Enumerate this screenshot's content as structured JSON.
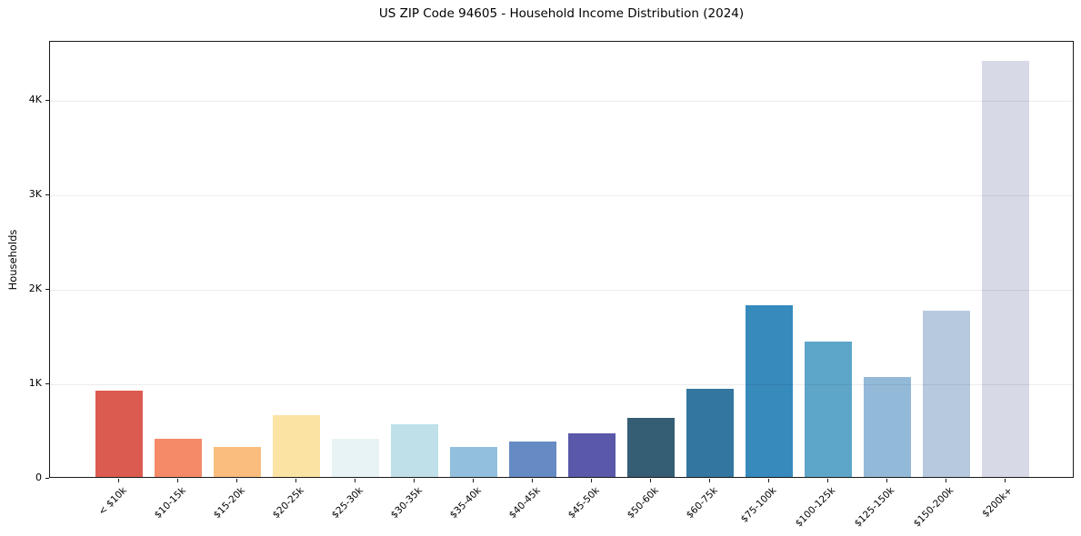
{
  "chart_data": {
    "type": "bar",
    "title": "US ZIP Code 94605 - Household Income Distribution (2024)",
    "xlabel": "",
    "ylabel": "Households",
    "categories": [
      "< $10k",
      "$10-15k",
      "$15-20k",
      "$20-25k",
      "$25-30k",
      "$30-35k",
      "$35-40k",
      "$40-45k",
      "$45-50k",
      "$50-60k",
      "$60-75k",
      "$75-100k",
      "$100-125k",
      "$125-150k",
      "$150-200k",
      "$200k+"
    ],
    "values": [
      915,
      404,
      320,
      654,
      404,
      558,
      317,
      375,
      465,
      625,
      933,
      1817,
      1433,
      1061,
      1760,
      4404
    ],
    "bar_colors": [
      "#dc5b51",
      "#f58a69",
      "#fabd7e",
      "#fbe3a3",
      "#e7f3f4",
      "#bfe0e9",
      "#92bfdd",
      "#668bc4",
      "#5a58a8",
      "#355d73",
      "#33769f",
      "#368abc",
      "#5da5c9",
      "#93b9d9",
      "#b7c9df",
      "#d8d9e6"
    ],
    "yticks": [
      {
        "label": "0",
        "value": 0
      },
      {
        "label": "1K",
        "value": 1000
      },
      {
        "label": "2K",
        "value": 2000
      },
      {
        "label": "3K",
        "value": 3000
      },
      {
        "label": "4K",
        "value": 4000
      }
    ],
    "ylim": [
      0,
      4625
    ],
    "grid": "horizontal",
    "legend_position": "none",
    "background_color": "#ffffff",
    "spine_color": "#1a1a1a",
    "grid_color": "#e8e8e8"
  }
}
